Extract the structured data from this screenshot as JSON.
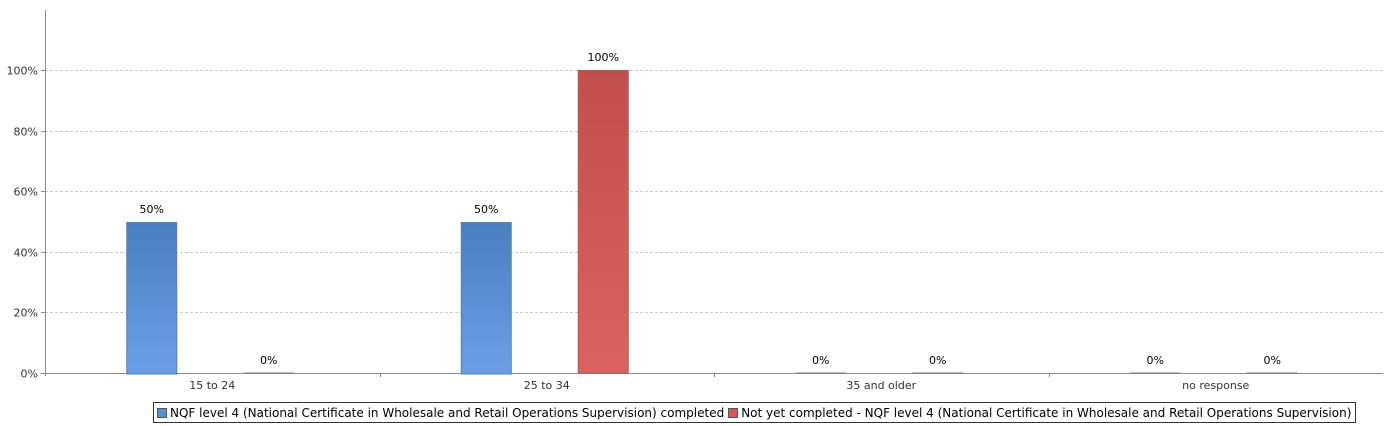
{
  "chart_data": {
    "type": "bar",
    "categories": [
      "15 to 24",
      "25 to 34",
      "35 and older",
      "no response"
    ],
    "series": [
      {
        "name": "NQF level 4 (National Certificate in Wholesale and Retail Operations Supervision) completed",
        "values": [
          50,
          50,
          0,
          0
        ],
        "labels": [
          "50%",
          "50%",
          "0%",
          "0%"
        ],
        "color": "#5b8fd6",
        "color_top": "#4a7fbf",
        "color_bottom": "#6a9fe6"
      },
      {
        "name": "Not yet completed - NQF level 4 (National Certificate in Wholesale and Retail Operations Supervision)",
        "values": [
          0,
          100,
          0,
          0
        ],
        "labels": [
          "0%",
          "100%",
          "0%",
          "0%"
        ],
        "color": "#d25a57",
        "color_top": "#c24f4c",
        "color_bottom": "#d9635f"
      }
    ],
    "ylim": [
      0,
      100
    ],
    "yticks": [
      "0%",
      "20%",
      "40%",
      "60%",
      "80%",
      "100%"
    ],
    "ytick_values": [
      0,
      20,
      40,
      60,
      80,
      100
    ],
    "grid": true,
    "legend_position": "bottom-left"
  }
}
